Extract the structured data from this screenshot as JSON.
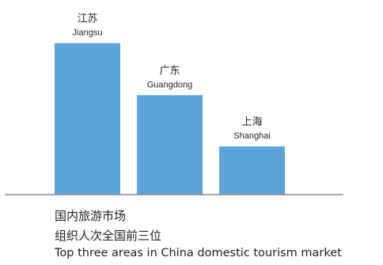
{
  "chart_data": {
    "type": "bar",
    "categories": [
      {
        "cn": "江苏",
        "en": "Jiangsu"
      },
      {
        "cn": "广东",
        "en": "Guangdong"
      },
      {
        "cn": "上海",
        "en": "Shanghai"
      }
    ],
    "values": [
      195,
      128,
      62
    ],
    "ylim": [
      0,
      220
    ],
    "grid": false,
    "bar_color": "#5ba4dc",
    "axis_color": "#888888"
  },
  "caption": {
    "line1": "国内旅游市场",
    "line2": "组织人次全国前三位",
    "line3": "Top three areas in China domestic tourism market"
  }
}
